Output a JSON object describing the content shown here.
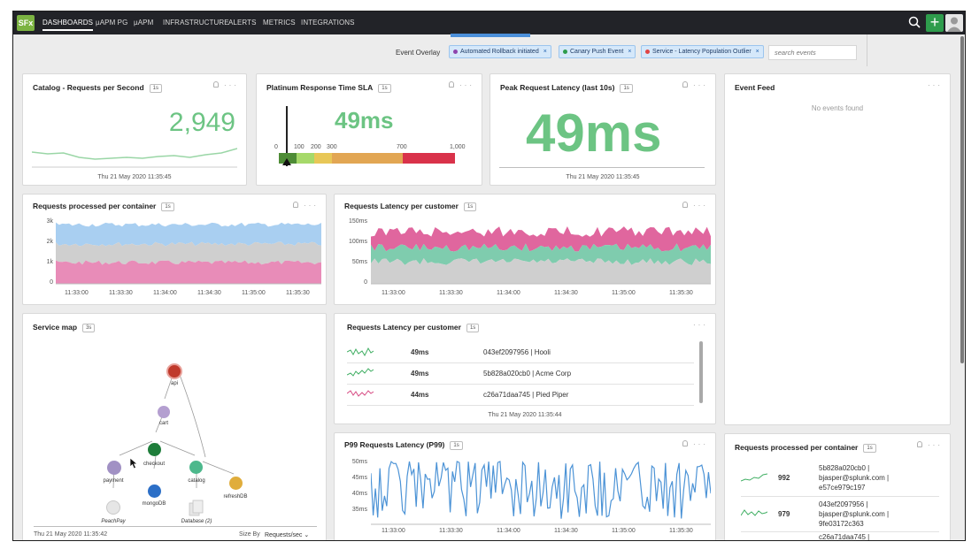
{
  "app": {
    "logo": "SFx",
    "nav": [
      {
        "label": "DASHBOARDS",
        "active": true
      },
      {
        "label": "µAPM PG"
      },
      {
        "label": "µAPM"
      },
      {
        "label": "INFRASTRUCTURE"
      },
      {
        "label": "ALERTS"
      },
      {
        "label": "METRICS"
      },
      {
        "label": "INTEGRATIONS"
      }
    ],
    "icons": {
      "search": "search-icon",
      "add": "plus-icon",
      "user": "user-avatar-icon"
    }
  },
  "toolbar": {
    "event_overlay_label": "Event Overlay",
    "chips": [
      {
        "label": "Automated Rollback initiated",
        "color": "#8e44ad"
      },
      {
        "label": "Canary Push Event",
        "color": "#2e9c4c"
      },
      {
        "label": "Service - Latency Population Outlier",
        "color": "#e04545"
      }
    ],
    "chip_close": "×",
    "search_placeholder": "search events"
  },
  "panels": {
    "catalog": {
      "title": "Catalog - Requests per Second",
      "badge": "1s",
      "value": "2,949",
      "timestamp": "Thu 21 May 2020 11:35:45",
      "sparkline": [
        18,
        16,
        17,
        12,
        10,
        11,
        12,
        11,
        13,
        14,
        12,
        15,
        17,
        22
      ]
    },
    "platinum": {
      "title": "Platinum Response Time SLA",
      "badge": "1s",
      "value": "49ms",
      "scale_labels": [
        "0",
        "100",
        "200",
        "300",
        "700",
        "1,000"
      ],
      "gauge_value": 49,
      "gauge_max": 1000
    },
    "peak": {
      "title": "Peak Request Latency (last 10s)",
      "badge": "1s",
      "value": "49ms",
      "timestamp": "Thu 21 May 2020 11:35:45"
    },
    "event_feed": {
      "title": "Event Feed",
      "empty_text": "No events found"
    },
    "req_container": {
      "title": "Requests processed per container",
      "badge": "1s",
      "y_ticks": [
        "3k",
        "2k",
        "1k",
        "0"
      ],
      "x_ticks": [
        "11:33:00",
        "11:33:30",
        "11:34:00",
        "11:34:30",
        "11:35:00",
        "11:35:30"
      ]
    },
    "latency_customer_chart": {
      "title": "Requests Latency per customer",
      "badge": "1s",
      "y_ticks": [
        "150ms",
        "100ms",
        "50ms",
        "0"
      ],
      "x_ticks": [
        "11:33:00",
        "11:33:30",
        "11:34:00",
        "11:34:30",
        "11:35:00",
        "11:35:30"
      ]
    },
    "service_map": {
      "title": "Service map",
      "badge": "3s",
      "timestamp": "Thu 21 May 2020 11:35:42",
      "size_by_label": "Size By",
      "size_by_value": "Requests/sec",
      "nodes": [
        {
          "name": "api",
          "color": "#c0392b"
        },
        {
          "name": "cart",
          "color": "#b49fd0"
        },
        {
          "name": "checkout",
          "color": "#1e7d3a"
        },
        {
          "name": "payment",
          "color": "#a191c4"
        },
        {
          "name": "catalog",
          "color": "#4db88c"
        },
        {
          "name": "refreshDB",
          "color": "#e0ad3c"
        },
        {
          "name": "mongoDB",
          "color": "#2c6fc7"
        },
        {
          "name": "PeachPay",
          "color": "#dcdcdc"
        },
        {
          "name": "Database (2)",
          "color": "#dcdcdc"
        }
      ]
    },
    "latency_customer_list": {
      "title": "Requests Latency per customer",
      "badge": "1s",
      "timestamp": "Thu 21 May 2020 11:35:44",
      "rows": [
        {
          "value": "49ms",
          "name": "043ef2097956 | Hooli",
          "status": "green"
        },
        {
          "value": "49ms",
          "name": "5b828a020cb0 | Acme Corp",
          "status": "green"
        },
        {
          "value": "44ms",
          "name": "c26a71daa745 | Pied Piper",
          "status": "pink"
        }
      ]
    },
    "p99": {
      "title": "P99 Requests Latency (P99)",
      "badge": "1s",
      "y_ticks": [
        "50ms",
        "45ms",
        "40ms",
        "35ms"
      ],
      "x_ticks": [
        "11:33:00",
        "11:33:30",
        "11:34:00",
        "11:34:30",
        "11:35:00",
        "11:35:30"
      ]
    },
    "req_container_list": {
      "title": "Requests processed per container",
      "badge": "1s",
      "rows": [
        {
          "value": "992",
          "line1": "5b828a020cb0 |",
          "line2": "bjasper@splunk.com |",
          "line3": "e57ce979c197"
        },
        {
          "value": "979",
          "line1": "043ef2097956 |",
          "line2": "bjasper@splunk.com |",
          "line3": "9fe03172c363"
        },
        {
          "value": "",
          "line1": "c26a71daa745 |",
          "line2": "",
          "line3": ""
        }
      ]
    }
  },
  "colors": {
    "accent_green": "#6cc483",
    "pink": "#e0669e",
    "teal": "#6cc4a4",
    "blue_series": "#a9cff1",
    "line_blue": "#4c93d6",
    "gauge": [
      "#4e8c36",
      "#a6d96a",
      "#e8c757",
      "#e2a653",
      "#d9324a"
    ]
  }
}
